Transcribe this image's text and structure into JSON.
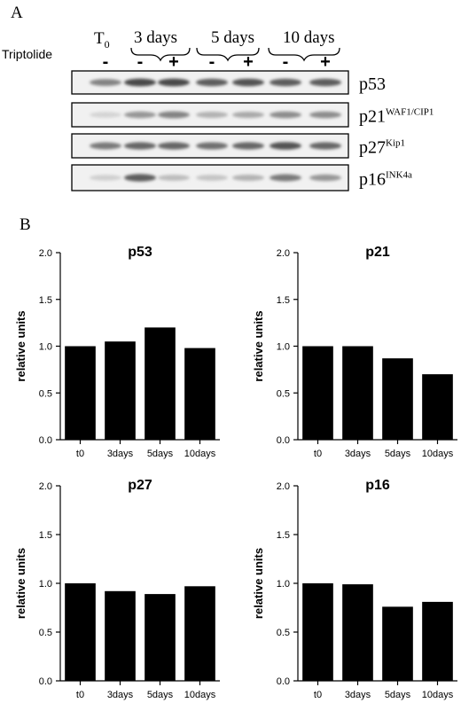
{
  "panel_a": {
    "label": "A",
    "treatment_label": "Triptolide",
    "t0_label": "T",
    "t0_sub": "0",
    "groups": [
      "3 days",
      "5 days",
      "10 days"
    ],
    "lane_signs": [
      "-",
      "-",
      "+",
      "-",
      "+",
      "-",
      "+"
    ],
    "blots": [
      {
        "name": "p53",
        "sup": "",
        "intensity": [
          0.55,
          0.85,
          0.85,
          0.75,
          0.8,
          0.75,
          0.75
        ]
      },
      {
        "name": "p21",
        "sup": "WAF1/CIP1",
        "intensity": [
          0.12,
          0.45,
          0.55,
          0.3,
          0.35,
          0.5,
          0.5
        ]
      },
      {
        "name": "p27",
        "sup": "Kip1",
        "intensity": [
          0.6,
          0.7,
          0.7,
          0.65,
          0.7,
          0.8,
          0.7
        ]
      },
      {
        "name": "p16",
        "sup": "INK4a",
        "intensity": [
          0.15,
          0.75,
          0.25,
          0.2,
          0.3,
          0.6,
          0.45
        ]
      }
    ]
  },
  "panel_b": {
    "label": "B"
  },
  "chart_data": [
    {
      "type": "bar",
      "title": "p53",
      "ylabel": "relative units",
      "categories": [
        "t0",
        "3days",
        "5days",
        "10days"
      ],
      "values": [
        1.0,
        1.05,
        1.2,
        0.98
      ],
      "ylim": [
        0,
        2
      ],
      "yticks": [
        "0.0",
        "0.5",
        "1.0",
        "1.5",
        "2.0"
      ]
    },
    {
      "type": "bar",
      "title": "p21",
      "ylabel": "relative units",
      "categories": [
        "t0",
        "3days",
        "5days",
        "10days"
      ],
      "values": [
        1.0,
        1.0,
        0.87,
        0.7
      ],
      "ylim": [
        0,
        2
      ],
      "yticks": [
        "0.0",
        "0.5",
        "1.0",
        "1.5",
        "2.0"
      ]
    },
    {
      "type": "bar",
      "title": "p27",
      "ylabel": "relative units",
      "categories": [
        "t0",
        "3days",
        "5days",
        "10days"
      ],
      "values": [
        1.0,
        0.92,
        0.89,
        0.97
      ],
      "ylim": [
        0,
        2
      ],
      "yticks": [
        "0.0",
        "0.5",
        "1.0",
        "1.5",
        "2.0"
      ]
    },
    {
      "type": "bar",
      "title": "p16",
      "ylabel": "relative units",
      "categories": [
        "t0",
        "3days",
        "5days",
        "10days"
      ],
      "values": [
        1.0,
        0.99,
        0.76,
        0.81
      ],
      "ylim": [
        0,
        2
      ],
      "yticks": [
        "0.0",
        "0.5",
        "1.0",
        "1.5",
        "2.0"
      ]
    }
  ]
}
